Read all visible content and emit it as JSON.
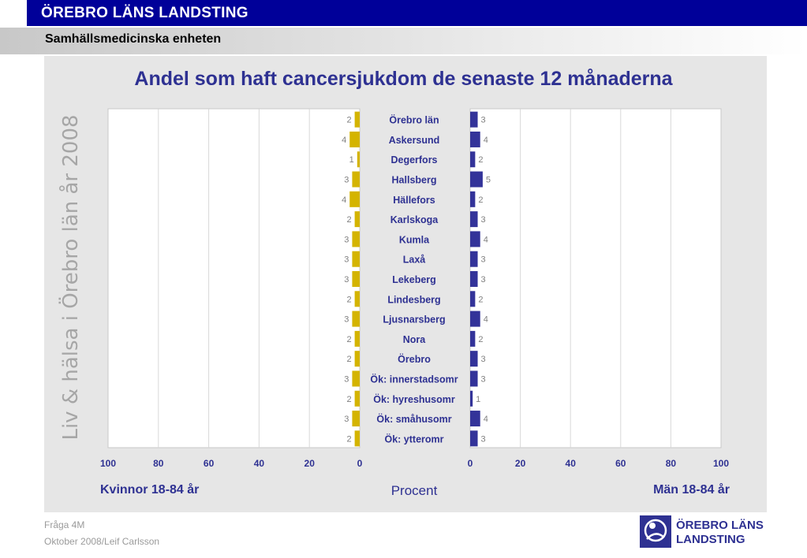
{
  "header": {
    "org": "ÖREBRO LÄNS LANDSTING",
    "unit": "Samhällsmedicinska enheten"
  },
  "side_text": "Liv & hälsa i Örebro län år 2008",
  "chart_data": {
    "type": "bar",
    "title": "Andel som haft cancersjukdom de senaste 12 månaderna",
    "categories": [
      "Örebro län",
      "Askersund",
      "Degerfors",
      "Hallsberg",
      "Hällefors",
      "Karlskoga",
      "Kumla",
      "Laxå",
      "Lekeberg",
      "Lindesberg",
      "Ljusnarsberg",
      "Nora",
      "Örebro",
      "Ök: innerstadsomr",
      "Ök: hyreshusomr",
      "Ök: småhusomr",
      "Ök: ytteromr"
    ],
    "series": [
      {
        "name": "Kvinnor 18-84 år",
        "values": [
          2,
          4,
          1,
          3,
          4,
          2,
          3,
          3,
          3,
          2,
          3,
          2,
          2,
          3,
          2,
          3,
          2
        ],
        "color": "#d4b400"
      },
      {
        "name": "Män 18-84 år",
        "values": [
          3,
          4,
          2,
          5,
          2,
          3,
          4,
          3,
          3,
          2,
          4,
          2,
          3,
          3,
          1,
          4,
          3
        ],
        "color": "#333399"
      }
    ],
    "xlim": [
      0,
      100
    ],
    "ticks_left": [
      "100",
      "80",
      "60",
      "40",
      "20",
      "0"
    ],
    "ticks_right": [
      "0",
      "20",
      "40",
      "60",
      "80",
      "100"
    ],
    "xlabel": "Procent",
    "grid": true
  },
  "footer": {
    "question": "Fråga 4M",
    "date_author": "Oktober 2008/Leif Carlsson"
  },
  "logo": {
    "line1": "ÖREBRO LÄNS",
    "line2": "LANDSTING"
  },
  "colors": {
    "brand": "#000099",
    "title": "#2e3192",
    "women": "#d4b400",
    "men": "#333399"
  }
}
